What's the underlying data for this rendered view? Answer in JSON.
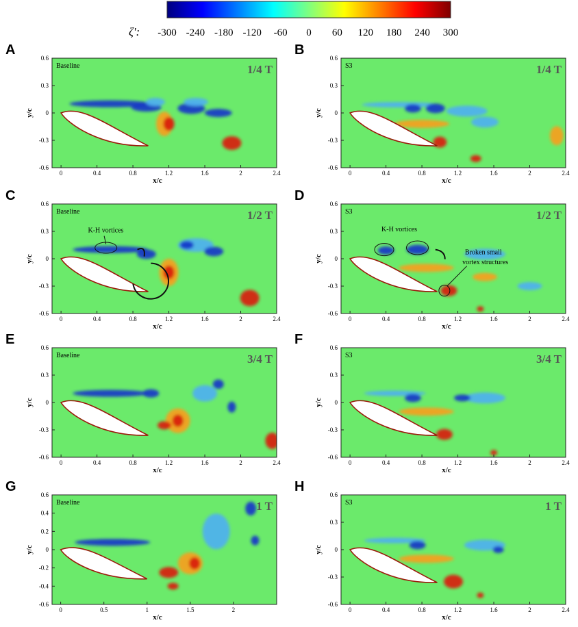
{
  "colorbar": {
    "label": "ζ':",
    "ticks": [
      "-300",
      "-240",
      "-180",
      "-120",
      "-60",
      "0",
      "60",
      "120",
      "180",
      "240",
      "300"
    ],
    "colors": [
      "#00007f",
      "#0000ff",
      "#007fff",
      "#00ffff",
      "#7fff7f",
      "#ffff00",
      "#ff7f00",
      "#ff0000",
      "#7f0000"
    ]
  },
  "field_colors": {
    "background": "#6bea6b",
    "negative": "#1436c8",
    "negative_mid": "#4fb0f0",
    "positive": "#d81c10",
    "positive_mid": "#f6a020",
    "airfoil": "#ffffff",
    "airfoil_edge": "#9a1a0a"
  },
  "chart_data": [
    {
      "type": "heatmap",
      "letter": "A",
      "case": "Baseline",
      "phase": "1/4 T",
      "xlabel": "x/c",
      "ylabel": "y/c",
      "xlim": [
        -0.1,
        2.4
      ],
      "ylim": [
        -0.6,
        0.6
      ],
      "xticks": [
        "0",
        "0.4",
        "0.8",
        "1.2",
        "1.6",
        "2",
        "2.4"
      ],
      "yticks": [
        "0.6",
        "0.3",
        "0",
        "-0.3",
        "-0.6"
      ],
      "annotations": []
    },
    {
      "type": "heatmap",
      "letter": "B",
      "case": "S3",
      "phase": "1/4 T",
      "xlabel": "x/c",
      "ylabel": "y/c",
      "xlim": [
        -0.1,
        2.4
      ],
      "ylim": [
        -0.6,
        0.6
      ],
      "xticks": [
        "0",
        "0.4",
        "0.8",
        "1.2",
        "1.6",
        "2",
        "2.4"
      ],
      "yticks": [
        "0.6",
        "0.3",
        "0",
        "-0.3",
        "-0.6"
      ],
      "annotations": []
    },
    {
      "type": "heatmap",
      "letter": "C",
      "case": "Baseline",
      "phase": "1/2 T",
      "xlabel": "x/c",
      "ylabel": "y/c",
      "xlim": [
        -0.1,
        2.4
      ],
      "ylim": [
        -0.6,
        0.6
      ],
      "xticks": [
        "0",
        "0.4",
        "0.8",
        "1.2",
        "1.6",
        "2",
        "2.4"
      ],
      "yticks": [
        "0.6",
        "0.3",
        "0",
        "-0.3",
        "-0.6"
      ],
      "annotations": [
        "K-H vortices"
      ]
    },
    {
      "type": "heatmap",
      "letter": "D",
      "case": "S3",
      "phase": "1/2 T",
      "xlabel": "x/c",
      "ylabel": "y/c",
      "xlim": [
        -0.1,
        2.4
      ],
      "ylim": [
        -0.6,
        0.6
      ],
      "xticks": [
        "0",
        "0.4",
        "0.8",
        "1.2",
        "1.6",
        "2",
        "2.4"
      ],
      "yticks": [
        "0.6",
        "0.3",
        "0",
        "-0.3",
        "-0.6"
      ],
      "annotations": [
        "K-H vortices",
        "Broken small",
        "vortex structures"
      ]
    },
    {
      "type": "heatmap",
      "letter": "E",
      "case": "Baseline",
      "phase": "3/4 T",
      "xlabel": "x/c",
      "ylabel": "y/c",
      "xlim": [
        -0.1,
        2.4
      ],
      "ylim": [
        -0.6,
        0.6
      ],
      "xticks": [
        "0",
        "0.4",
        "0.8",
        "1.2",
        "1.6",
        "2",
        "2.4"
      ],
      "yticks": [
        "0.6",
        "0.3",
        "0",
        "-0.3",
        "-0.6"
      ],
      "annotations": []
    },
    {
      "type": "heatmap",
      "letter": "F",
      "case": "S3",
      "phase": "3/4 T",
      "xlabel": "x/c",
      "ylabel": "y/c",
      "xlim": [
        -0.1,
        2.4
      ],
      "ylim": [
        -0.6,
        0.6
      ],
      "xticks": [
        "0",
        "0.4",
        "0.8",
        "1.2",
        "1.6",
        "2",
        "2.4"
      ],
      "yticks": [
        "0.6",
        "0.3",
        "0",
        "-0.3",
        "-0.6"
      ],
      "annotations": []
    },
    {
      "type": "heatmap",
      "letter": "G",
      "case": "Baseline",
      "phase": "1 T",
      "xlabel": "x/c",
      "ylabel": "y/c",
      "xlim": [
        -0.1,
        2.5
      ],
      "ylim": [
        -0.6,
        0.6
      ],
      "xticks": [
        "0",
        "0.5",
        "1",
        "1.5",
        "2"
      ],
      "yticks": [
        "0.6",
        "0.4",
        "0.2",
        "0",
        "-0.2",
        "-0.4",
        "-0.6"
      ],
      "annotations": []
    },
    {
      "type": "heatmap",
      "letter": "H",
      "case": "S3",
      "phase": "1 T",
      "xlabel": "x/c",
      "ylabel": "y/c",
      "xlim": [
        -0.1,
        2.4
      ],
      "ylim": [
        -0.6,
        0.6
      ],
      "xticks": [
        "0",
        "0.4",
        "0.8",
        "1.2",
        "1.6",
        "2",
        "2.4"
      ],
      "yticks": [
        "0.6",
        "0.3",
        "0",
        "-0.3",
        "-0.6"
      ],
      "annotations": []
    }
  ]
}
